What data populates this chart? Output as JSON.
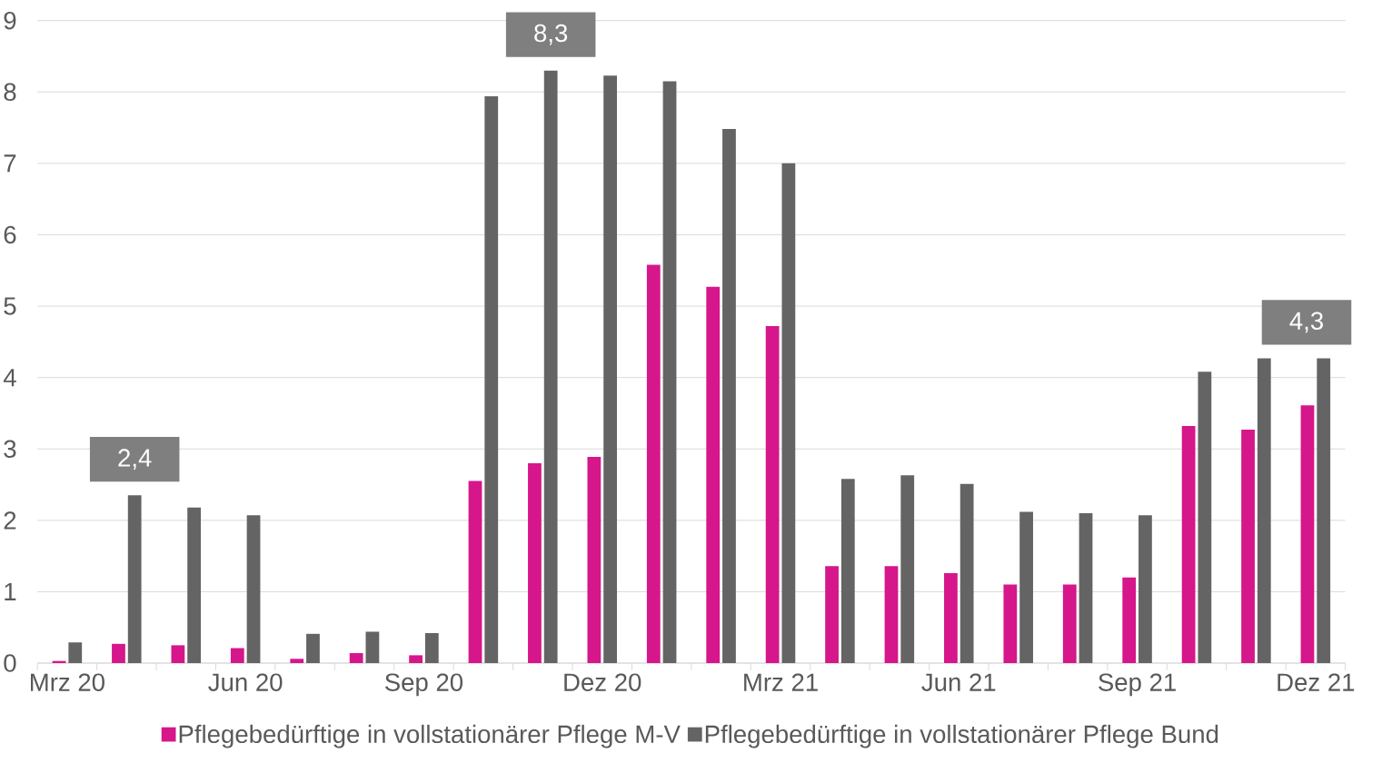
{
  "chart_data": {
    "type": "bar",
    "categories": [
      "Mrz 20",
      null,
      null,
      "Jun 20",
      null,
      null,
      "Sep 20",
      null,
      null,
      "Dez 20",
      null,
      null,
      "Mrz 21",
      null,
      null,
      "Jun 21",
      null,
      null,
      "Sep 21",
      null,
      null,
      "Dez 21"
    ],
    "series": [
      {
        "name": "Pflegebedürftige in vollstationärer Pflege M-V",
        "color": "#d6168b",
        "values": [
          0.03,
          0.27,
          0.25,
          0.21,
          0.06,
          0.14,
          0.11,
          2.55,
          2.8,
          2.89,
          5.58,
          5.27,
          4.72,
          1.36,
          1.36,
          1.26,
          1.1,
          1.1,
          1.2,
          3.32,
          3.27,
          3.61
        ]
      },
      {
        "name": "Pflegebedürftige in vollstationärer Pflege Bund",
        "color": "#646464",
        "values": [
          0.29,
          2.35,
          2.18,
          2.07,
          0.41,
          0.44,
          0.42,
          7.94,
          8.3,
          8.23,
          8.15,
          7.48,
          7.0,
          2.58,
          2.63,
          2.51,
          2.12,
          2.1,
          2.07,
          4.08,
          4.27,
          4.27
        ],
        "value_labels": [
          null,
          "2,4",
          null,
          null,
          null,
          null,
          null,
          null,
          "8,3",
          null,
          null,
          null,
          null,
          null,
          null,
          null,
          null,
          null,
          null,
          null,
          null,
          "4,3"
        ]
      }
    ],
    "ylim": [
      0,
      9
    ],
    "yticks": [
      0,
      1,
      2,
      3,
      4,
      5,
      6,
      7,
      8,
      9
    ],
    "grid": "y",
    "legend": "bottom"
  }
}
